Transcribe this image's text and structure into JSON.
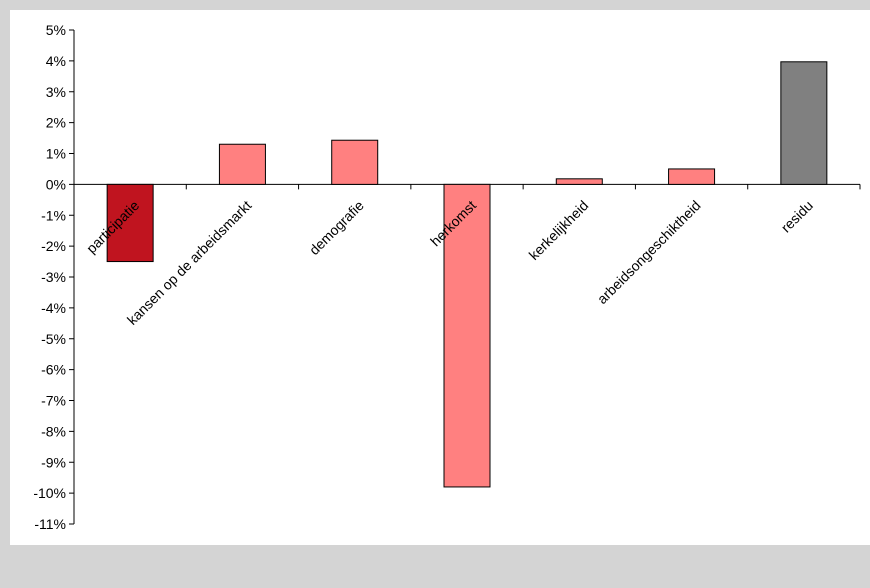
{
  "chart_data": {
    "type": "bar",
    "categories": [
      "participatie",
      "kansen op de arbeidsmarkt",
      "demografie",
      "herkomst",
      "kerkelijkheid",
      "arbeidsongeschiktheid",
      "residu"
    ],
    "values": [
      -2.5,
      1.3,
      1.43,
      -9.8,
      0.18,
      0.5,
      3.97
    ],
    "colors": [
      "#c0141f",
      "#ff8080",
      "#ff8080",
      "#ff8080",
      "#ff8080",
      "#ff8080",
      "#808080"
    ],
    "ylim": [
      -11,
      5
    ],
    "yticks": [
      "5%",
      "4%",
      "3%",
      "2%",
      "1%",
      "0%",
      "-1%",
      "-2%",
      "-3%",
      "-4%",
      "-5%",
      "-6%",
      "-7%",
      "-8%",
      "-9%",
      "-10%",
      "-11%"
    ],
    "ytick_values": [
      5,
      4,
      3,
      2,
      1,
      0,
      -1,
      -2,
      -3,
      -4,
      -5,
      -6,
      -7,
      -8,
      -9,
      -10,
      -11
    ],
    "grid": false,
    "legend": "none"
  }
}
